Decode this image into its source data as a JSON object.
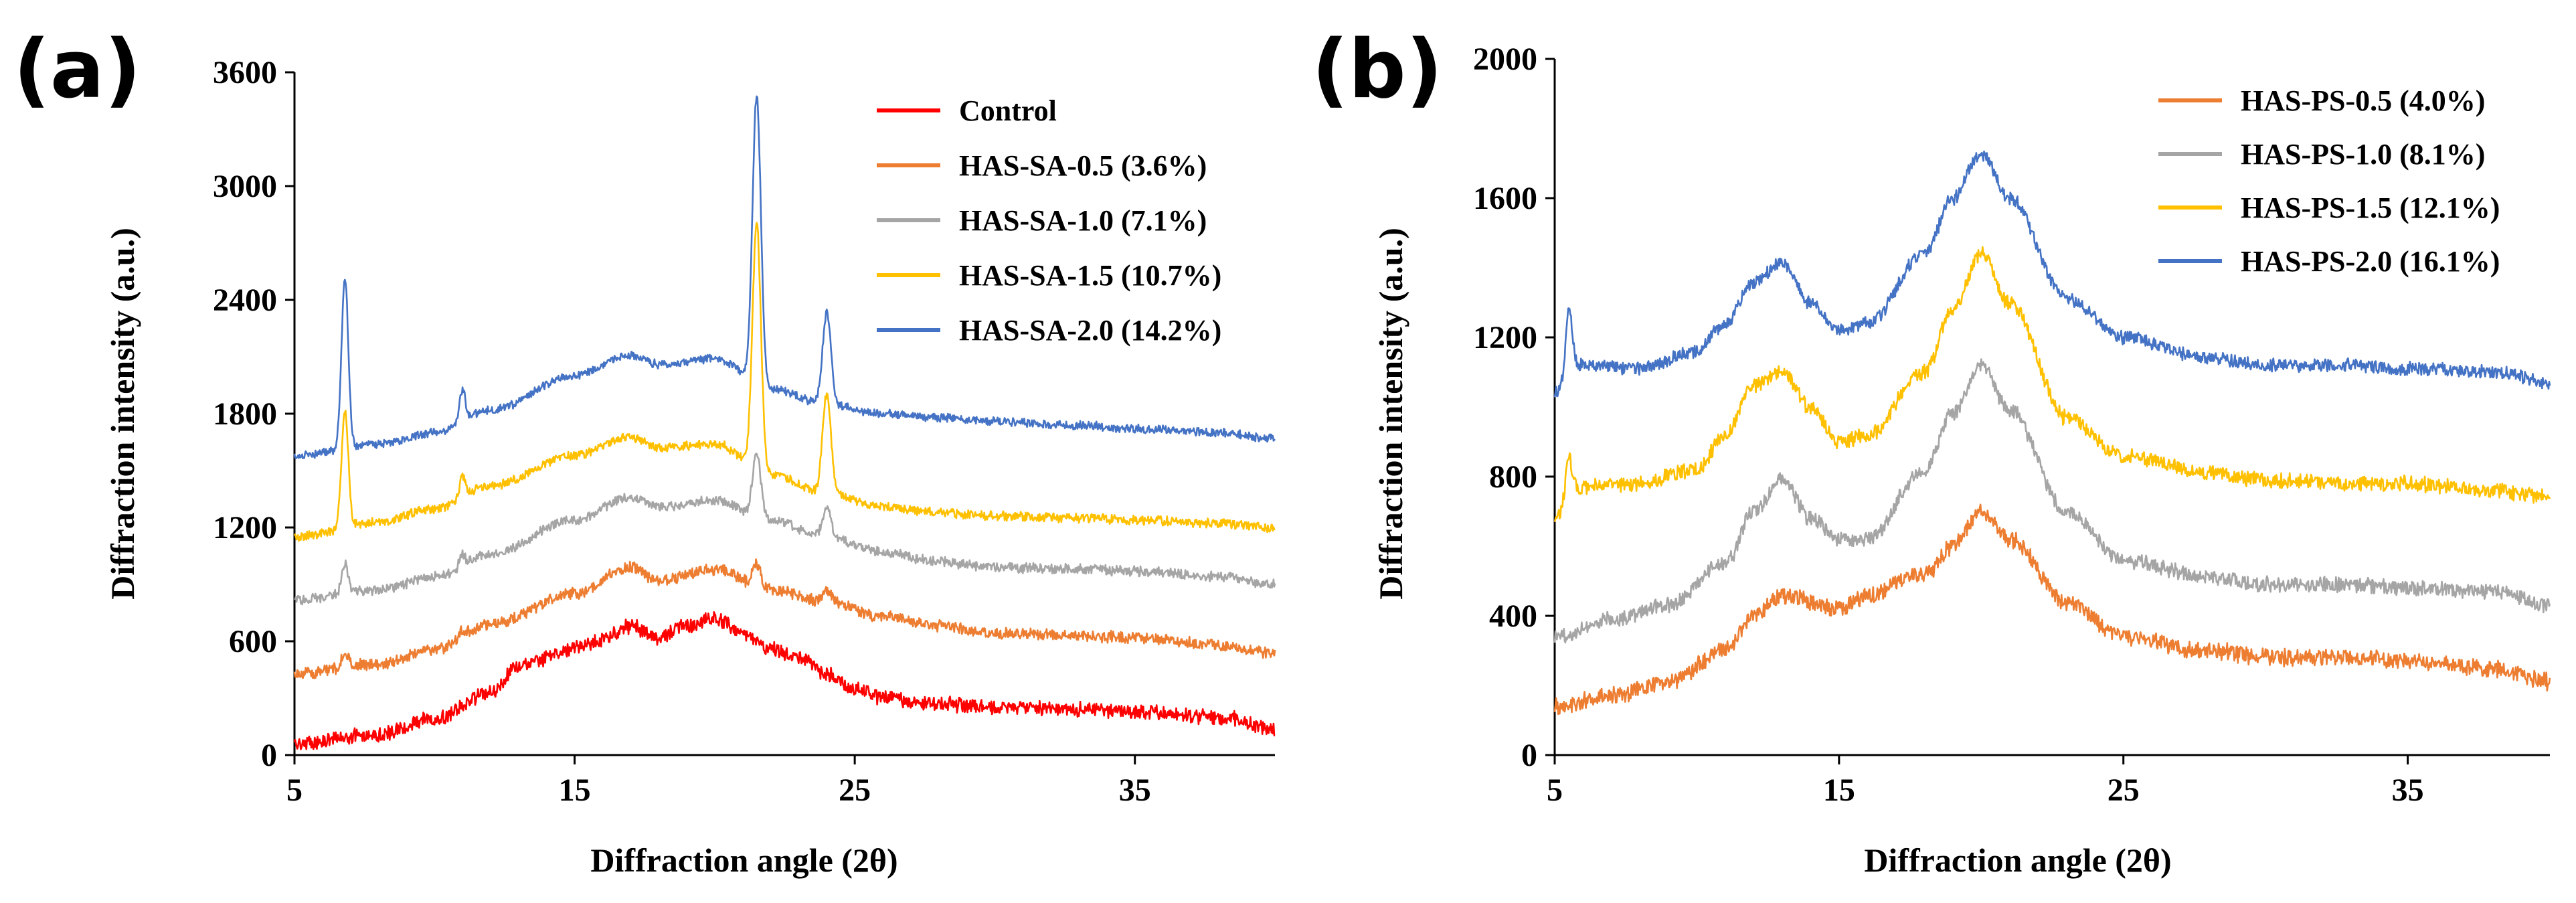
{
  "chart_data": [
    {
      "type": "line",
      "panel_label": "(a)",
      "title": "",
      "xlabel": "Diffraction angle (2θ)",
      "ylabel": "Diffraction intensity (a.u.)",
      "xlim": [
        5,
        40
      ],
      "ylim": [
        0,
        3600
      ],
      "xticks": [
        5,
        15,
        25,
        35
      ],
      "yticks": [
        0,
        600,
        1200,
        1800,
        2400,
        3000,
        3600
      ],
      "legend_position": "top-right",
      "series": [
        {
          "name": "Control",
          "color": "#FF0000",
          "baseline": [
            [
              5,
              60
            ],
            [
              8,
              110
            ],
            [
              10,
              190
            ],
            [
              12,
              330
            ],
            [
              13,
              470
            ],
            [
              15,
              560
            ],
            [
              16,
              610
            ],
            [
              17,
              680
            ],
            [
              18,
              620
            ],
            [
              19,
              680
            ],
            [
              20,
              720
            ],
            [
              21,
              640
            ],
            [
              22,
              560
            ],
            [
              23,
              520
            ],
            [
              24,
              430
            ],
            [
              25,
              350
            ],
            [
              26,
              300
            ],
            [
              28,
              270
            ],
            [
              30,
              250
            ],
            [
              33,
              240
            ],
            [
              35,
              230
            ],
            [
              38,
              200
            ],
            [
              40,
              140
            ]
          ],
          "peaks": [],
          "noise": 45
        },
        {
          "name": "HAS-SA-0.5 (3.6%)",
          "color": "#ED7D31",
          "baseline": [
            [
              5,
              430
            ],
            [
              8,
              480
            ],
            [
              10,
              560
            ],
            [
              12,
              690
            ],
            [
              15,
              850
            ],
            [
              17,
              990
            ],
            [
              18,
              920
            ],
            [
              20,
              980
            ],
            [
              22,
              870
            ],
            [
              24,
              810
            ],
            [
              26,
              730
            ],
            [
              28,
              680
            ],
            [
              30,
              640
            ],
            [
              33,
              630
            ],
            [
              35,
              620
            ],
            [
              38,
              580
            ],
            [
              40,
              540
            ]
          ],
          "peaks": [
            [
              6.8,
              80,
              0.12
            ],
            [
              11,
              40,
              0.1
            ],
            [
              21.5,
              120,
              0.15
            ],
            [
              24,
              60,
              0.15
            ]
          ],
          "noise": 35
        },
        {
          "name": "HAS-SA-1.0 (7.1%)",
          "color": "#A5A5A5",
          "baseline": [
            [
              5,
              820
            ],
            [
              8,
              870
            ],
            [
              10,
              940
            ],
            [
              12,
              1060
            ],
            [
              15,
              1240
            ],
            [
              17,
              1360
            ],
            [
              18,
              1310
            ],
            [
              20,
              1340
            ],
            [
              22,
              1240
            ],
            [
              24,
              1150
            ],
            [
              26,
              1070
            ],
            [
              28,
              1020
            ],
            [
              30,
              990
            ],
            [
              33,
              980
            ],
            [
              35,
              970
            ],
            [
              38,
              940
            ],
            [
              40,
              900
            ]
          ],
          "peaks": [
            [
              6.8,
              150,
              0.12
            ],
            [
              11,
              60,
              0.1
            ],
            [
              21.5,
              330,
              0.15
            ],
            [
              24,
              150,
              0.15
            ]
          ],
          "noise": 30
        },
        {
          "name": "HAS-SA-1.5 (10.7%)",
          "color": "#FFC000",
          "baseline": [
            [
              5,
              1150
            ],
            [
              8,
              1230
            ],
            [
              10,
              1300
            ],
            [
              12,
              1420
            ],
            [
              15,
              1580
            ],
            [
              17,
              1680
            ],
            [
              18,
              1620
            ],
            [
              20,
              1640
            ],
            [
              22,
              1480
            ],
            [
              24,
              1380
            ],
            [
              26,
              1310
            ],
            [
              28,
              1280
            ],
            [
              30,
              1260
            ],
            [
              33,
              1250
            ],
            [
              35,
              1240
            ],
            [
              38,
              1220
            ],
            [
              40,
              1200
            ]
          ],
          "peaks": [
            [
              6.8,
              620,
              0.12
            ],
            [
              11,
              110,
              0.1
            ],
            [
              21.5,
              1300,
              0.15
            ],
            [
              24,
              520,
              0.15
            ]
          ],
          "noise": 28
        },
        {
          "name": "HAS-SA-2.0 (14.2%)",
          "color": "#4472C4",
          "baseline": [
            [
              5,
              1580
            ],
            [
              8,
              1640
            ],
            [
              10,
              1700
            ],
            [
              12,
              1820
            ],
            [
              15,
              2000
            ],
            [
              17,
              2110
            ],
            [
              18,
              2060
            ],
            [
              20,
              2090
            ],
            [
              22,
              1930
            ],
            [
              24,
              1850
            ],
            [
              26,
              1800
            ],
            [
              28,
              1780
            ],
            [
              30,
              1760
            ],
            [
              33,
              1740
            ],
            [
              35,
              1720
            ],
            [
              38,
              1700
            ],
            [
              40,
              1670
            ]
          ],
          "peaks": [
            [
              6.8,
              900,
              0.12
            ],
            [
              11,
              170,
              0.1
            ],
            [
              21.5,
              1520,
              0.15
            ],
            [
              24,
              480,
              0.15
            ]
          ],
          "noise": 25
        }
      ]
    },
    {
      "type": "line",
      "panel_label": "(b)",
      "title": "",
      "xlabel": "Diffraction angle (2θ)",
      "ylabel": "Diffraction intensity (a.u.)",
      "xlim": [
        5,
        40
      ],
      "ylim": [
        0,
        2000
      ],
      "xticks": [
        5,
        15,
        25,
        35
      ],
      "yticks": [
        0,
        400,
        800,
        1200,
        1600,
        2000
      ],
      "legend_position": "top-right",
      "series": [
        {
          "name": "HAS-PS-0.5 (4.0%)",
          "color": "#ED7D31",
          "baseline": [
            [
              5,
              140
            ],
            [
              7,
              170
            ],
            [
              9,
              210
            ],
            [
              11,
              300
            ],
            [
              12,
              400
            ],
            [
              13,
              460
            ],
            [
              15,
              420
            ],
            [
              16,
              460
            ],
            [
              18,
              520
            ],
            [
              19,
              600
            ],
            [
              20,
              700
            ],
            [
              21,
              620
            ],
            [
              23,
              440
            ],
            [
              25,
              340
            ],
            [
              28,
              300
            ],
            [
              30,
              280
            ],
            [
              33,
              280
            ],
            [
              35,
              270
            ],
            [
              38,
              250
            ],
            [
              40,
              210
            ]
          ],
          "peaks": [],
          "noise": 28
        },
        {
          "name": "HAS-PS-1.0 (8.1%)",
          "color": "#A5A5A5",
          "baseline": [
            [
              5,
              340
            ],
            [
              7,
              390
            ],
            [
              9,
              430
            ],
            [
              11,
              550
            ],
            [
              12,
              700
            ],
            [
              13,
              790
            ],
            [
              14,
              680
            ],
            [
              15,
              620
            ],
            [
              16,
              620
            ],
            [
              18,
              820
            ],
            [
              19,
              980
            ],
            [
              20,
              1120
            ],
            [
              21,
              990
            ],
            [
              23,
              700
            ],
            [
              25,
              560
            ],
            [
              28,
              510
            ],
            [
              30,
              490
            ],
            [
              33,
              490
            ],
            [
              35,
              480
            ],
            [
              38,
              470
            ],
            [
              40,
              430
            ]
          ],
          "peaks": [],
          "noise": 25
        },
        {
          "name": "HAS-PS-1.5 (12.1%)",
          "color": "#FFC000",
          "baseline": [
            [
              5,
              690
            ],
            [
              6,
              770
            ],
            [
              8,
              780
            ],
            [
              10,
              820
            ],
            [
              11,
              920
            ],
            [
              12,
              1060
            ],
            [
              13,
              1100
            ],
            [
              14,
              1000
            ],
            [
              15,
              900
            ],
            [
              16,
              920
            ],
            [
              18,
              1100
            ],
            [
              19,
              1280
            ],
            [
              20,
              1440
            ],
            [
              21,
              1300
            ],
            [
              23,
              970
            ],
            [
              25,
              860
            ],
            [
              28,
              810
            ],
            [
              30,
              790
            ],
            [
              33,
              780
            ],
            [
              35,
              780
            ],
            [
              38,
              760
            ],
            [
              40,
              740
            ]
          ],
          "peaks": [
            [
              5.5,
              120,
              0.12
            ]
          ],
          "noise": 25
        },
        {
          "name": "HAS-PS-2.0 (16.1%)",
          "color": "#4472C4",
          "baseline": [
            [
              5,
              1040
            ],
            [
              6,
              1120
            ],
            [
              8,
              1110
            ],
            [
              10,
              1160
            ],
            [
              11,
              1240
            ],
            [
              12,
              1360
            ],
            [
              13,
              1410
            ],
            [
              14,
              1300
            ],
            [
              15,
              1220
            ],
            [
              16,
              1240
            ],
            [
              18,
              1440
            ],
            [
              19,
              1600
            ],
            [
              20,
              1730
            ],
            [
              21,
              1600
            ],
            [
              23,
              1310
            ],
            [
              25,
              1200
            ],
            [
              28,
              1140
            ],
            [
              30,
              1120
            ],
            [
              33,
              1120
            ],
            [
              35,
              1110
            ],
            [
              38,
              1100
            ],
            [
              40,
              1070
            ]
          ],
          "peaks": [
            [
              5.5,
              200,
              0.12
            ]
          ],
          "noise": 22
        }
      ]
    }
  ]
}
